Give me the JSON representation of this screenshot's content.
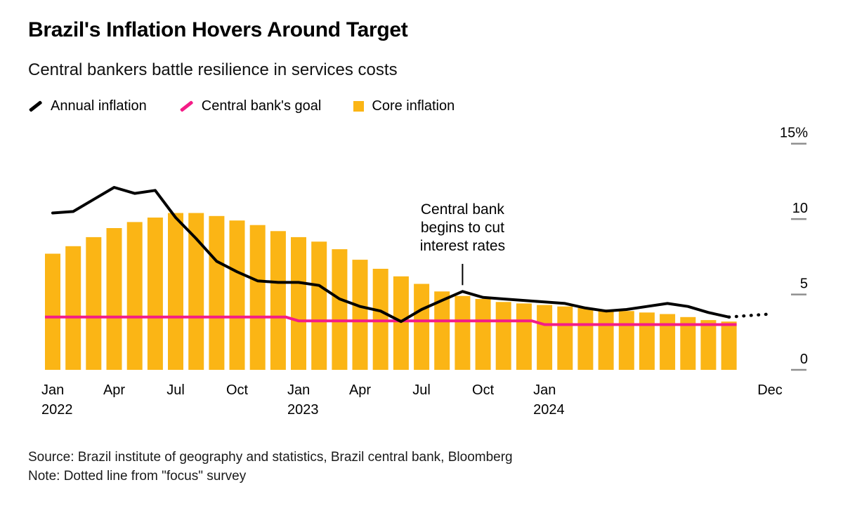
{
  "header": {
    "title": "Brazil's Inflation Hovers Around Target",
    "subtitle": "Central bankers battle resilience in services costs"
  },
  "legend": [
    {
      "label": "Annual inflation",
      "swatch": "line",
      "color": "#000000"
    },
    {
      "label": "Central bank's goal",
      "swatch": "line",
      "color": "#f41c87"
    },
    {
      "label": "Core inflation",
      "swatch": "square",
      "color": "#fbb515"
    }
  ],
  "annotation": {
    "lines": [
      "Central bank",
      "begins to cut",
      "interest rates"
    ],
    "month": "2023-08",
    "month_index": 20
  },
  "chart_data": {
    "type": "bar",
    "subtype": "monthly bar + line combo",
    "title": "Brazil's Inflation Hovers Around Target",
    "xlabel": "",
    "ylabel": "%",
    "x_start": "2022-01",
    "x_end": "2024-12",
    "months_total": 36,
    "legend_position": "top-left",
    "grid": false,
    "y_axis": {
      "side": "right",
      "range": [
        0,
        15.5
      ],
      "ticks": [
        {
          "value": 15,
          "label": "15%"
        },
        {
          "value": 10,
          "label": "10"
        },
        {
          "value": 5,
          "label": "5"
        },
        {
          "value": 0,
          "label": "0"
        }
      ]
    },
    "x_axis": {
      "ticks": [
        {
          "month_index": 0,
          "label": "Jan",
          "year": "2022"
        },
        {
          "month_index": 3,
          "label": "Apr"
        },
        {
          "month_index": 6,
          "label": "Jul"
        },
        {
          "month_index": 9,
          "label": "Oct"
        },
        {
          "month_index": 12,
          "label": "Jan",
          "year": "2023"
        },
        {
          "month_index": 15,
          "label": "Apr"
        },
        {
          "month_index": 18,
          "label": "Jul"
        },
        {
          "month_index": 21,
          "label": "Oct"
        },
        {
          "month_index": 24,
          "label": "Jan",
          "year": "2024"
        },
        {
          "month_index": 35,
          "label": "Dec"
        }
      ]
    },
    "series": [
      {
        "name": "Core inflation",
        "type": "bar",
        "color": "#fbb515",
        "start_index": 0,
        "values": [
          7.7,
          8.2,
          8.8,
          9.4,
          9.8,
          10.1,
          10.4,
          10.4,
          10.2,
          9.9,
          9.6,
          9.2,
          8.8,
          8.5,
          8.0,
          7.3,
          6.7,
          6.2,
          5.7,
          5.2,
          4.9,
          4.7,
          4.5,
          4.4,
          4.3,
          4.2,
          4.1,
          4.0,
          3.9,
          3.8,
          3.7,
          3.5,
          3.3,
          3.2
        ]
      },
      {
        "name": "Annual inflation",
        "type": "line",
        "style": "solid",
        "color": "#000000",
        "start_index": 0,
        "values": [
          10.4,
          10.5,
          11.3,
          12.1,
          11.7,
          11.9,
          10.1,
          8.7,
          7.2,
          6.5,
          5.9,
          5.8,
          5.8,
          5.6,
          4.7,
          4.2,
          3.9,
          3.2,
          4.0,
          4.6,
          5.2,
          4.8,
          4.7,
          4.6,
          4.5,
          4.4,
          4.1,
          3.9,
          4.0,
          4.2,
          4.4,
          4.2,
          3.8,
          3.5
        ]
      },
      {
        "name": "Annual inflation forecast (focus survey)",
        "type": "line",
        "style": "dotted",
        "color": "#000000",
        "start_index": 33,
        "values": [
          3.5,
          3.6,
          3.7
        ]
      },
      {
        "name": "Central bank's goal",
        "type": "line",
        "style": "solid",
        "color": "#f41c87",
        "segments": [
          {
            "start_index": 0,
            "end_index": 11,
            "value": 3.5
          },
          {
            "start_index": 12,
            "end_index": 23,
            "value": 3.25
          },
          {
            "start_index": 24,
            "end_index": 33,
            "value": 3.0
          }
        ]
      }
    ]
  },
  "footer": {
    "source": "Source: Brazil institute of geography and statistics, Brazil central bank, Bloomberg",
    "note": "Note: Dotted line from \"focus\" survey"
  }
}
